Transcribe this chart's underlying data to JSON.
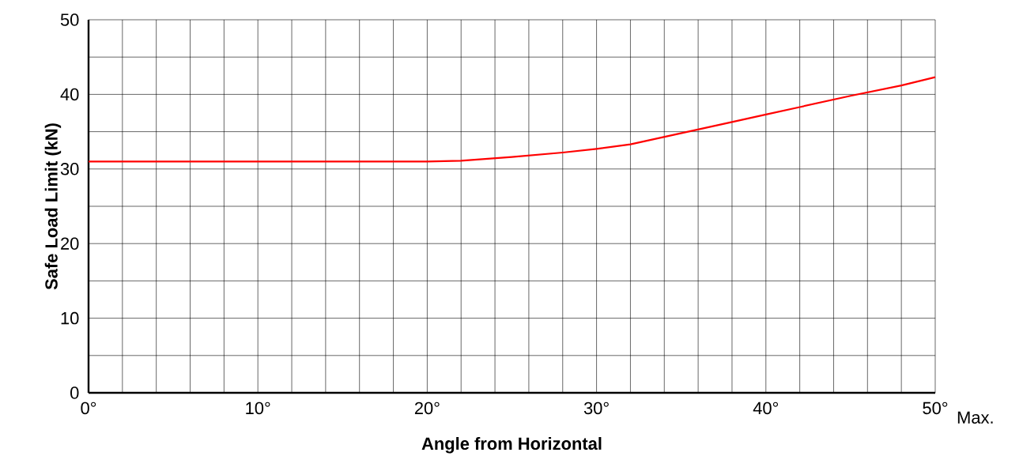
{
  "chart_data": {
    "type": "line",
    "xlabel": "Angle from Horizontal",
    "ylabel": "Safe Load Limit (kN)",
    "x": [
      0,
      5,
      10,
      15,
      20,
      22,
      25,
      28,
      30,
      32,
      35,
      38,
      40,
      42,
      45,
      48,
      50
    ],
    "series": [
      {
        "color": "#ff0000",
        "values": [
          31,
          31,
          31,
          31,
          31,
          31.1,
          31.6,
          32.2,
          32.7,
          33.3,
          34.8,
          36.3,
          37.3,
          38.3,
          39.8,
          41.2,
          42.3
        ]
      }
    ],
    "xlim": [
      0,
      50
    ],
    "ylim": [
      0,
      50
    ],
    "xticks": [
      {
        "value": 0,
        "label": "0°"
      },
      {
        "value": 2,
        "label": null
      },
      {
        "value": 4,
        "label": null
      },
      {
        "value": 6,
        "label": null
      },
      {
        "value": 8,
        "label": null
      },
      {
        "value": 10,
        "label": "10°"
      },
      {
        "value": 12,
        "label": null
      },
      {
        "value": 14,
        "label": null
      },
      {
        "value": 16,
        "label": null
      },
      {
        "value": 18,
        "label": null
      },
      {
        "value": 20,
        "label": "20°"
      },
      {
        "value": 22,
        "label": null
      },
      {
        "value": 24,
        "label": null
      },
      {
        "value": 26,
        "label": null
      },
      {
        "value": 28,
        "label": null
      },
      {
        "value": 30,
        "label": "30°"
      },
      {
        "value": 32,
        "label": null
      },
      {
        "value": 34,
        "label": null
      },
      {
        "value": 36,
        "label": null
      },
      {
        "value": 38,
        "label": null
      },
      {
        "value": 40,
        "label": "40°"
      },
      {
        "value": 42,
        "label": null
      },
      {
        "value": 44,
        "label": null
      },
      {
        "value": 46,
        "label": null
      },
      {
        "value": 48,
        "label": null
      },
      {
        "value": 50,
        "label": "50°"
      }
    ],
    "yticks": [
      0,
      {
        "value": 5,
        "label": null
      },
      10,
      {
        "value": 15,
        "label": null
      },
      20,
      {
        "value": 25,
        "label": null
      },
      30,
      {
        "value": 35,
        "label": null
      },
      40,
      {
        "value": 45,
        "label": null
      },
      50
    ],
    "grid": true,
    "marker": "none",
    "line_style": "solid",
    "annotations": [
      "Max."
    ]
  }
}
